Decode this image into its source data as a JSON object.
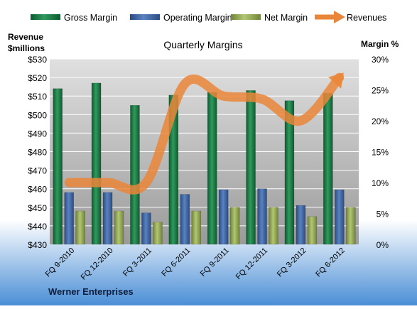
{
  "chart_data": {
    "type": "bar",
    "title": "Quarterly Margins",
    "company": "Werner Enterprises",
    "left_axis_title": [
      "Revenue",
      "$millions"
    ],
    "right_axis_title": "Margin %",
    "categories": [
      "FQ 9-2010",
      "FQ 12-2010",
      "FQ 3-2011",
      "FQ 6-2011",
      "FQ 9-2011",
      "FQ 12-2011",
      "FQ 3-2012",
      "FQ 6-2012"
    ],
    "left_axis": {
      "min": 430,
      "max": 530,
      "step": 10,
      "prefix": "$"
    },
    "right_axis": {
      "min": 0,
      "max": 30,
      "step": 5,
      "suffix": "%"
    },
    "series": [
      {
        "name": "Gross Margin",
        "axis": "left",
        "kind": "bar",
        "color": "#1e7a45",
        "values": [
          514,
          517,
          505,
          510.5,
          512,
          513,
          507.5,
          511.5
        ]
      },
      {
        "name": "Operating Margin",
        "axis": "left",
        "kind": "bar",
        "color": "#4068a8",
        "values": [
          458,
          458,
          447,
          457,
          459.5,
          460,
          451,
          459.5
        ]
      },
      {
        "name": "Net Margin",
        "axis": "left",
        "kind": "bar",
        "color": "#96ac52",
        "values": [
          448,
          448,
          442,
          448,
          450,
          450,
          445,
          450
        ]
      },
      {
        "name": "Revenues",
        "axis": "right",
        "kind": "line",
        "color": "#ea8639",
        "values": [
          10,
          10,
          10,
          26,
          24,
          23.5,
          20,
          27
        ]
      }
    ],
    "grid": true,
    "legend_position": "top"
  }
}
